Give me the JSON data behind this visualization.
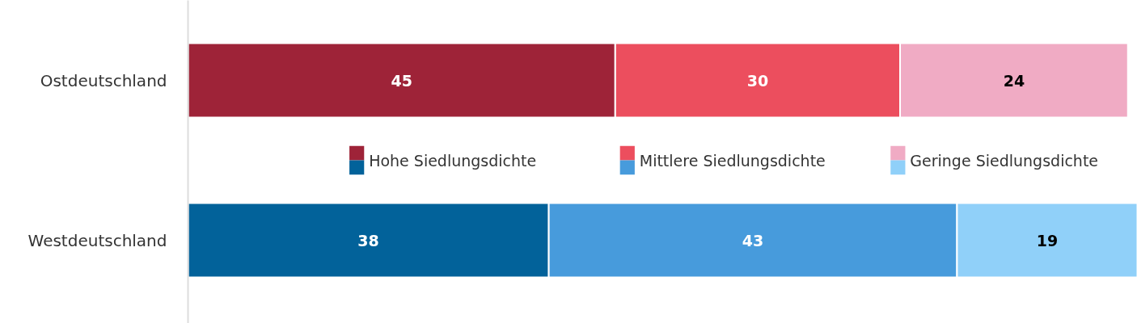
{
  "chart_data": {
    "type": "bar",
    "orientation": "horizontal",
    "stacked": true,
    "data_labels": true,
    "legend": "center",
    "grid": false,
    "categories": [
      "Ostdeutschland",
      "Westdeutschland"
    ],
    "series": [
      {
        "name": "Hohe Siedlungsdichte",
        "colors": [
          "#9e2338",
          "#02629a"
        ],
        "values": [
          45,
          38
        ]
      },
      {
        "name": "Mittlere Siedlungsdichte",
        "colors": [
          "#ec4e5e",
          "#479bdc"
        ],
        "values": [
          30,
          43
        ]
      },
      {
        "name": "Geringe Siedlungsdichte",
        "colors": [
          "#f0abc4",
          "#90d0f9"
        ],
        "values": [
          24,
          19
        ]
      }
    ]
  }
}
